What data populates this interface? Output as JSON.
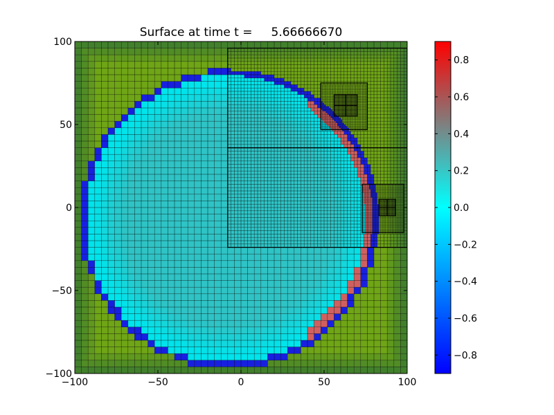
{
  "chart_data": {
    "type": "heatmap",
    "title": "Surface at time t =     5.66666670",
    "xlabel": "",
    "ylabel": "",
    "xlim": [
      -100,
      100
    ],
    "ylim": [
      -100,
      100
    ],
    "xticks": [
      -100,
      -50,
      0,
      50,
      100
    ],
    "yticks": [
      -100,
      -50,
      0,
      50,
      100
    ],
    "xtick_labels": [
      "−100",
      "−50",
      "0",
      "50",
      "100"
    ],
    "ytick_labels": [
      "−100",
      "−50",
      "0",
      "50",
      "100"
    ],
    "grid": false,
    "colorbar": {
      "range": [
        -0.9,
        0.9
      ],
      "ticks": [
        0.8,
        0.6,
        0.4,
        0.2,
        0.0,
        -0.2,
        -0.4,
        -0.6,
        -0.8
      ],
      "tick_labels": [
        "0.8",
        "0.6",
        "0.4",
        "0.2",
        "0.0",
        "−0.2",
        "−0.4",
        "−0.6",
        "−0.8"
      ],
      "colors": [
        "#0000ff",
        "#00ffff",
        "#ff0000"
      ]
    },
    "land_colors": [
      "#3a7a30",
      "#6fa516"
    ],
    "water_colors": [
      "#00e4ec",
      "#3fb8b8"
    ],
    "front_colors": [
      "#1820e0",
      "#d06060"
    ],
    "water_body": {
      "center": [
        -7,
        -7
      ],
      "radius": 88
    },
    "coarse_cell_size": 4,
    "refinement_patches": [
      {
        "level": 2,
        "x": [
          -8,
          100
        ],
        "y": [
          36,
          96
        ]
      },
      {
        "level": 2,
        "x": [
          -8,
          100
        ],
        "y": [
          -24,
          36
        ]
      },
      {
        "level": 3,
        "x": [
          48,
          76
        ],
        "y": [
          47,
          75
        ]
      },
      {
        "level": 3,
        "x": [
          73,
          98
        ],
        "y": [
          -15,
          14
        ]
      },
      {
        "level": 4,
        "x": [
          56,
          70
        ],
        "y": [
          55,
          68
        ]
      },
      {
        "level": 4,
        "x": [
          83,
          93
        ],
        "y": [
          -5,
          5
        ]
      }
    ]
  }
}
